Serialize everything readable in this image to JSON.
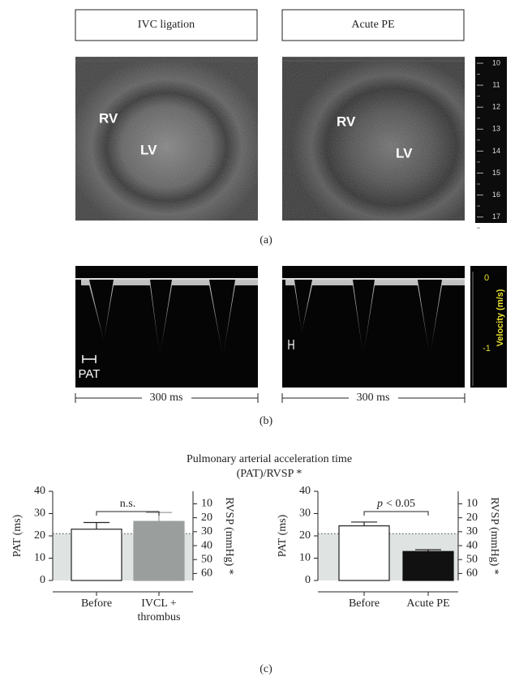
{
  "panel_a": {
    "headers": [
      "IVC ligation",
      "Acute PE"
    ],
    "images": [
      {
        "labels": [
          "RV",
          "LV"
        ]
      },
      {
        "labels": [
          "RV",
          "LV"
        ]
      }
    ],
    "depth_scale": [
      10,
      11,
      12,
      13,
      14,
      15,
      16,
      17
    ],
    "caption": "(a)"
  },
  "panel_b": {
    "marker_label": "PAT",
    "durations": [
      "300 ms",
      "300 ms"
    ],
    "velocity_scale": [
      0,
      -1
    ],
    "velocity_label": "Velocity (m/s)",
    "caption": "(b)"
  },
  "panel_c": {
    "title": [
      "Pulmonary arterial acceleration time",
      "(PAT)/RVSP *"
    ],
    "caption": "(c)"
  },
  "chart_data": [
    {
      "type": "bar",
      "categories": [
        "Before",
        "IVCL + thrombus"
      ],
      "values": [
        23,
        26.5
      ],
      "errors": [
        3,
        4
      ],
      "colors": [
        "#ffffff",
        "#9a9e9d"
      ],
      "ylabel": "PAT (ms)",
      "ylim": [
        0,
        40
      ],
      "yticks": [
        0,
        10,
        20,
        30,
        40
      ],
      "y2label": "RVSP (mmHg) *",
      "y2lim": [
        65,
        1
      ],
      "y2ticks": [
        10,
        20,
        30,
        40,
        50,
        60
      ],
      "threshold": 21,
      "annotation": [
        "n.s."
      ]
    },
    {
      "type": "bar",
      "categories": [
        "Before",
        "Acute PE"
      ],
      "values": [
        24.5,
        13
      ],
      "errors": [
        1.7,
        0.8
      ],
      "colors": [
        "#ffffff",
        "#111111"
      ],
      "ylabel": "PAT (ms)",
      "ylim": [
        0,
        40
      ],
      "yticks": [
        0,
        10,
        20,
        30,
        40
      ],
      "y2label": "RVSP (mmHg) *",
      "y2lim": [
        65,
        1
      ],
      "y2ticks": [
        10,
        20,
        30,
        40,
        50,
        60
      ],
      "threshold": 21,
      "annotation": [
        "p",
        "< 0.05"
      ]
    }
  ]
}
